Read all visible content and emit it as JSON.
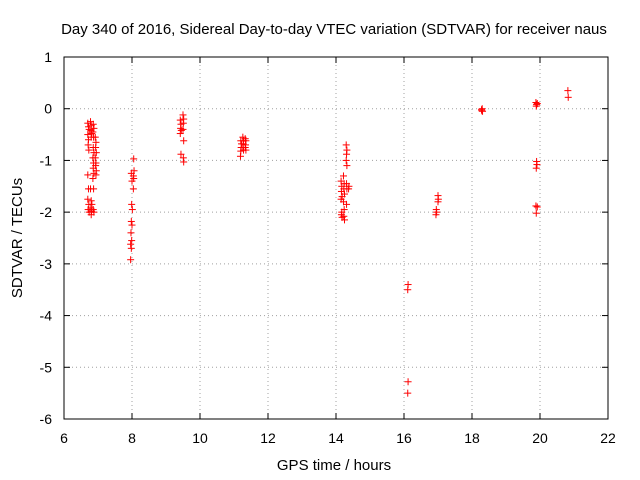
{
  "chart_data": {
    "type": "scatter",
    "title": "Day 340 of 2016, Sidereal Day-to-day VTEC variation (SDTVAR) for receiver naus",
    "xlabel": "GPS time / hours",
    "ylabel": "SDTVAR / TECUs",
    "xlim": [
      6,
      22
    ],
    "ylim": [
      -6,
      1
    ],
    "xticks": [
      6,
      8,
      10,
      12,
      14,
      16,
      18,
      20,
      22
    ],
    "yticks": [
      -6,
      -5,
      -4,
      -3,
      -2,
      -1,
      0,
      1
    ],
    "xtick_labels": [
      "6",
      "8",
      "10",
      "12",
      "14",
      "16",
      "18",
      "20",
      "22"
    ],
    "ytick_labels": [
      "-6",
      "-5",
      "-4",
      "-3",
      "-2",
      "-1",
      "0",
      "1"
    ],
    "grid": true,
    "marker": "plus",
    "color": "#ff0000",
    "series": [
      {
        "name": "SDTVAR",
        "points": [
          [
            6.7,
            -0.28
          ],
          [
            6.72,
            -0.35
          ],
          [
            6.74,
            -0.4
          ],
          [
            6.7,
            -0.5
          ],
          [
            6.72,
            -0.6
          ],
          [
            6.71,
            -0.7
          ],
          [
            6.73,
            -0.8
          ],
          [
            6.7,
            -1.28
          ],
          [
            6.72,
            -1.55
          ],
          [
            6.7,
            -1.75
          ],
          [
            6.73,
            -1.85
          ],
          [
            6.71,
            -1.95
          ],
          [
            6.74,
            -2.0
          ],
          [
            6.78,
            -0.25
          ],
          [
            6.8,
            -0.32
          ],
          [
            6.79,
            -0.42
          ],
          [
            6.81,
            -0.48
          ],
          [
            6.8,
            -0.55
          ],
          [
            6.78,
            -1.55
          ],
          [
            6.8,
            -1.78
          ],
          [
            6.82,
            -1.85
          ],
          [
            6.79,
            -1.92
          ],
          [
            6.81,
            -1.98
          ],
          [
            6.8,
            -2.05
          ],
          [
            6.86,
            -0.3
          ],
          [
            6.88,
            -0.38
          ],
          [
            6.85,
            -0.45
          ],
          [
            6.87,
            -0.55
          ],
          [
            6.86,
            -0.75
          ],
          [
            6.88,
            -0.85
          ],
          [
            6.85,
            -0.95
          ],
          [
            6.87,
            -1.05
          ],
          [
            6.86,
            -1.15
          ],
          [
            6.88,
            -1.25
          ],
          [
            6.85,
            -1.35
          ],
          [
            6.87,
            -1.55
          ],
          [
            6.86,
            -1.95
          ],
          [
            6.88,
            -2.0
          ],
          [
            6.92,
            -0.55
          ],
          [
            6.94,
            -0.65
          ],
          [
            6.93,
            -0.75
          ],
          [
            6.95,
            -0.85
          ],
          [
            6.92,
            -0.95
          ],
          [
            6.94,
            -1.05
          ],
          [
            6.93,
            -1.1
          ],
          [
            6.95,
            -1.2
          ],
          [
            6.94,
            -1.28
          ],
          [
            7.98,
            -1.25
          ],
          [
            8.0,
            -1.4
          ],
          [
            7.99,
            -1.85
          ],
          [
            8.01,
            -1.95
          ],
          [
            7.98,
            -2.18
          ],
          [
            8.0,
            -2.25
          ],
          [
            7.97,
            -2.4
          ],
          [
            7.99,
            -2.55
          ],
          [
            7.96,
            -2.62
          ],
          [
            7.98,
            -2.7
          ],
          [
            7.96,
            -2.92
          ],
          [
            8.05,
            -0.97
          ],
          [
            8.06,
            -1.2
          ],
          [
            8.04,
            -1.3
          ],
          [
            8.05,
            -1.35
          ],
          [
            8.04,
            -1.55
          ],
          [
            9.42,
            -0.22
          ],
          [
            9.44,
            -0.3
          ],
          [
            9.43,
            -0.38
          ],
          [
            9.45,
            -0.42
          ],
          [
            9.42,
            -0.48
          ],
          [
            9.44,
            -0.88
          ],
          [
            9.5,
            -0.12
          ],
          [
            9.52,
            -0.2
          ],
          [
            9.51,
            -0.28
          ],
          [
            9.5,
            -0.4
          ],
          [
            9.52,
            -0.62
          ],
          [
            9.51,
            -0.95
          ],
          [
            9.52,
            -1.03
          ],
          [
            11.2,
            -0.62
          ],
          [
            11.22,
            -0.68
          ],
          [
            11.21,
            -0.75
          ],
          [
            11.2,
            -0.82
          ],
          [
            11.19,
            -0.92
          ],
          [
            11.26,
            -0.55
          ],
          [
            11.28,
            -0.62
          ],
          [
            11.27,
            -0.68
          ],
          [
            11.26,
            -0.75
          ],
          [
            11.28,
            -0.8
          ],
          [
            11.33,
            -0.58
          ],
          [
            11.35,
            -0.62
          ],
          [
            11.34,
            -0.7
          ],
          [
            11.33,
            -0.75
          ],
          [
            11.35,
            -0.8
          ],
          [
            14.15,
            -1.4
          ],
          [
            14.17,
            -1.5
          ],
          [
            14.16,
            -1.6
          ],
          [
            14.18,
            -1.7
          ],
          [
            14.15,
            -1.75
          ],
          [
            14.17,
            -2.0
          ],
          [
            14.16,
            -2.05
          ],
          [
            14.18,
            -2.1
          ],
          [
            14.22,
            -1.3
          ],
          [
            14.24,
            -1.45
          ],
          [
            14.23,
            -1.55
          ],
          [
            14.25,
            -1.65
          ],
          [
            14.22,
            -1.8
          ],
          [
            14.24,
            -1.95
          ],
          [
            14.23,
            -2.08
          ],
          [
            14.25,
            -2.15
          ],
          [
            14.3,
            -0.7
          ],
          [
            14.32,
            -0.8
          ],
          [
            14.31,
            -0.88
          ],
          [
            14.3,
            -1.0
          ],
          [
            14.32,
            -1.1
          ],
          [
            14.31,
            -1.45
          ],
          [
            14.32,
            -1.55
          ],
          [
            14.31,
            -1.85
          ],
          [
            14.38,
            -1.5
          ],
          [
            14.37,
            -1.55
          ],
          [
            16.12,
            -3.4
          ],
          [
            16.11,
            -3.5
          ],
          [
            16.12,
            -5.28
          ],
          [
            16.11,
            -5.5
          ],
          [
            16.95,
            -1.95
          ],
          [
            16.96,
            -2.0
          ],
          [
            16.94,
            -2.05
          ],
          [
            17.0,
            -1.68
          ],
          [
            17.01,
            -1.75
          ],
          [
            17.0,
            -1.8
          ],
          [
            18.28,
            -0.02
          ],
          [
            18.3,
            0.0
          ],
          [
            18.29,
            -0.04
          ],
          [
            18.31,
            -0.05
          ],
          [
            19.88,
            0.12
          ],
          [
            19.9,
            0.08
          ],
          [
            19.89,
            0.05
          ],
          [
            19.92,
            0.1
          ],
          [
            19.9,
            -1.02
          ],
          [
            19.91,
            -1.08
          ],
          [
            19.89,
            -1.15
          ],
          [
            19.88,
            -1.88
          ],
          [
            19.92,
            -1.9
          ],
          [
            19.89,
            -2.02
          ],
          [
            20.82,
            0.35
          ],
          [
            20.83,
            0.22
          ]
        ]
      }
    ]
  }
}
